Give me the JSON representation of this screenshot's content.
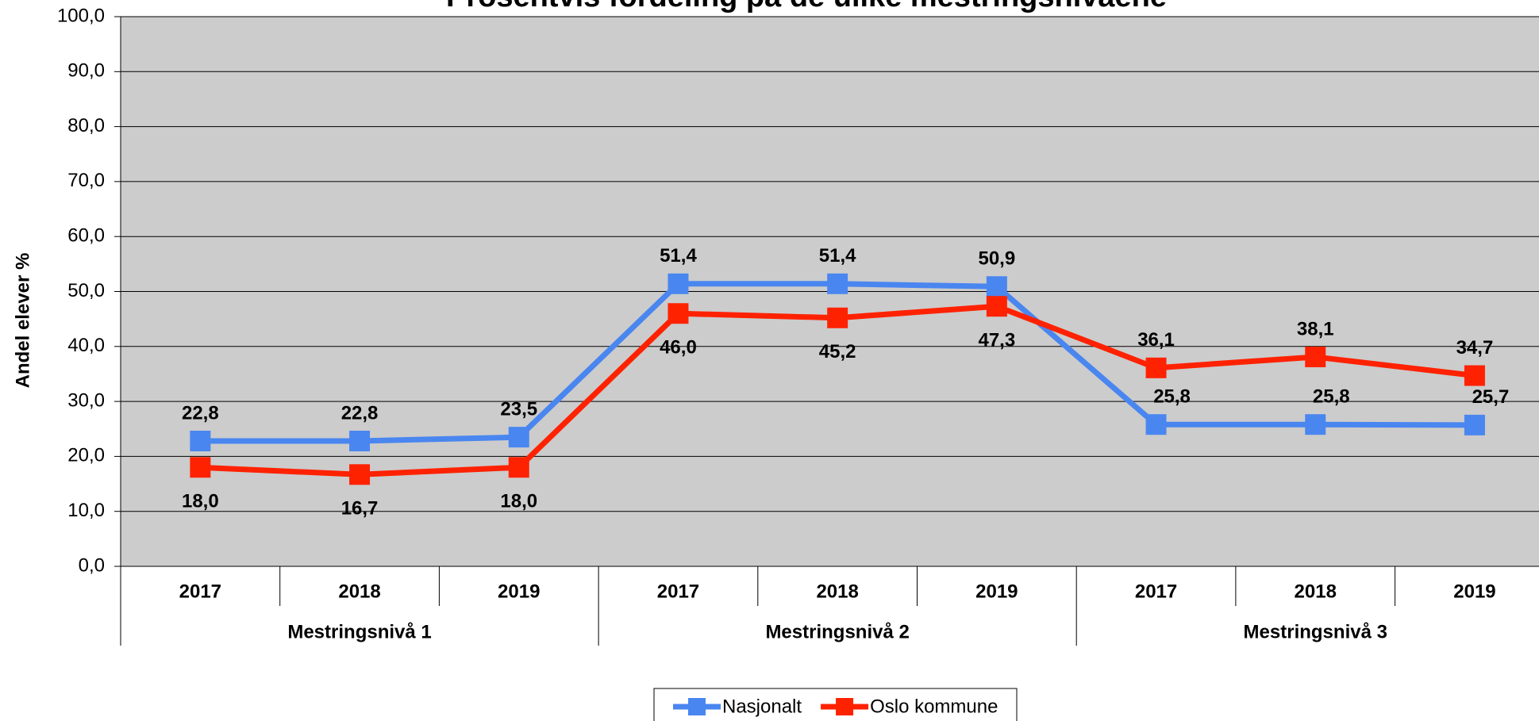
{
  "chart_data": {
    "type": "line",
    "title": "Prosentvis fordeling på de ulike mestringsnivåene",
    "y_label": "Andel elever %",
    "categories": [
      "2017",
      "2018",
      "2019",
      "2017",
      "2018",
      "2019",
      "2017",
      "2018",
      "2019"
    ],
    "groups": [
      "Mestringsnivå 1",
      "Mestringsnivå 2",
      "Mestringsnivå 3"
    ],
    "series": [
      {
        "name": "Nasjonalt",
        "color": "#4a86f0",
        "values": [
          22.8,
          22.8,
          23.5,
          51.4,
          51.4,
          50.9,
          25.8,
          25.8,
          25.7
        ],
        "value_labels": [
          "22,8",
          "22,8",
          "23,5",
          "51,4",
          "51,4",
          "50,9",
          "25,8",
          "25,8",
          "25,7"
        ]
      },
      {
        "name": "Oslo kommune",
        "color": "#ff2200",
        "values": [
          18.0,
          16.7,
          18.0,
          46.0,
          45.2,
          47.3,
          36.1,
          38.1,
          34.7
        ],
        "value_labels": [
          "18,0",
          "16,7",
          "18,0",
          "46,0",
          "45,2",
          "47,3",
          "36,1",
          "38,1",
          "34,7"
        ]
      }
    ],
    "ylim": [
      0,
      100
    ],
    "yticks": [
      {
        "value": 0,
        "label": "0,0"
      },
      {
        "value": 10,
        "label": "10,0"
      },
      {
        "value": 20,
        "label": "20,0"
      },
      {
        "value": 30,
        "label": "30,0"
      },
      {
        "value": 40,
        "label": "40,0"
      },
      {
        "value": 50,
        "label": "50,0"
      },
      {
        "value": 60,
        "label": "60,0"
      },
      {
        "value": 70,
        "label": "70,0"
      },
      {
        "value": 80,
        "label": "80,0"
      },
      {
        "value": 90,
        "label": "90,0"
      },
      {
        "value": 100,
        "label": "100,0"
      }
    ],
    "grid": true,
    "legend": "bottom"
  }
}
